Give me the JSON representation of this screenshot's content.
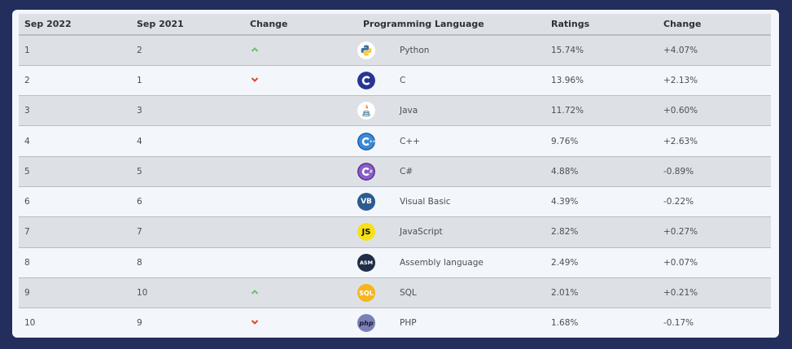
{
  "table": {
    "headers": [
      "Sep 2022",
      "Sep 2021",
      "Change",
      "Programming Language",
      "Ratings",
      "Change"
    ],
    "rows": [
      {
        "sep2022": "1",
        "sep2021": "2",
        "trend": "up",
        "language": "Python",
        "icon": "python-icon",
        "ratings": "15.74%",
        "change": "+4.07%"
      },
      {
        "sep2022": "2",
        "sep2021": "1",
        "trend": "down",
        "language": "C",
        "icon": "c-icon",
        "ratings": "13.96%",
        "change": "+2.13%"
      },
      {
        "sep2022": "3",
        "sep2021": "3",
        "trend": "none",
        "language": "Java",
        "icon": "java-icon",
        "ratings": "11.72%",
        "change": "+0.60%"
      },
      {
        "sep2022": "4",
        "sep2021": "4",
        "trend": "none",
        "language": "C++",
        "icon": "cpp-icon",
        "ratings": "9.76%",
        "change": "+2.63%"
      },
      {
        "sep2022": "5",
        "sep2021": "5",
        "trend": "none",
        "language": "C#",
        "icon": "csharp-icon",
        "ratings": "4.88%",
        "change": "-0.89%"
      },
      {
        "sep2022": "6",
        "sep2021": "6",
        "trend": "none",
        "language": "Visual Basic",
        "icon": "visual-basic-icon",
        "ratings": "4.39%",
        "change": "-0.22%"
      },
      {
        "sep2022": "7",
        "sep2021": "7",
        "trend": "none",
        "language": "JavaScript",
        "icon": "javascript-icon",
        "ratings": "2.82%",
        "change": "+0.27%"
      },
      {
        "sep2022": "8",
        "sep2021": "8",
        "trend": "none",
        "language": "Assembly language",
        "icon": "assembly-icon",
        "ratings": "2.49%",
        "change": "+0.07%"
      },
      {
        "sep2022": "9",
        "sep2021": "10",
        "trend": "up",
        "language": "SQL",
        "icon": "sql-icon",
        "ratings": "2.01%",
        "change": "+0.21%"
      },
      {
        "sep2022": "10",
        "sep2021": "9",
        "trend": "down",
        "language": "PHP",
        "icon": "php-icon",
        "ratings": "1.68%",
        "change": "-0.17%"
      }
    ]
  },
  "icon_labels": {
    "visual_basic": "VB",
    "javascript": "JS",
    "assembly": "ASM",
    "sql": "SQL",
    "php": "php"
  },
  "colors": {
    "frame": "#232e5c",
    "card": "#f3f7fb",
    "stripe": "#dde1e5",
    "up_arrow": "#6cc06a",
    "down_arrow": "#e2461e"
  }
}
